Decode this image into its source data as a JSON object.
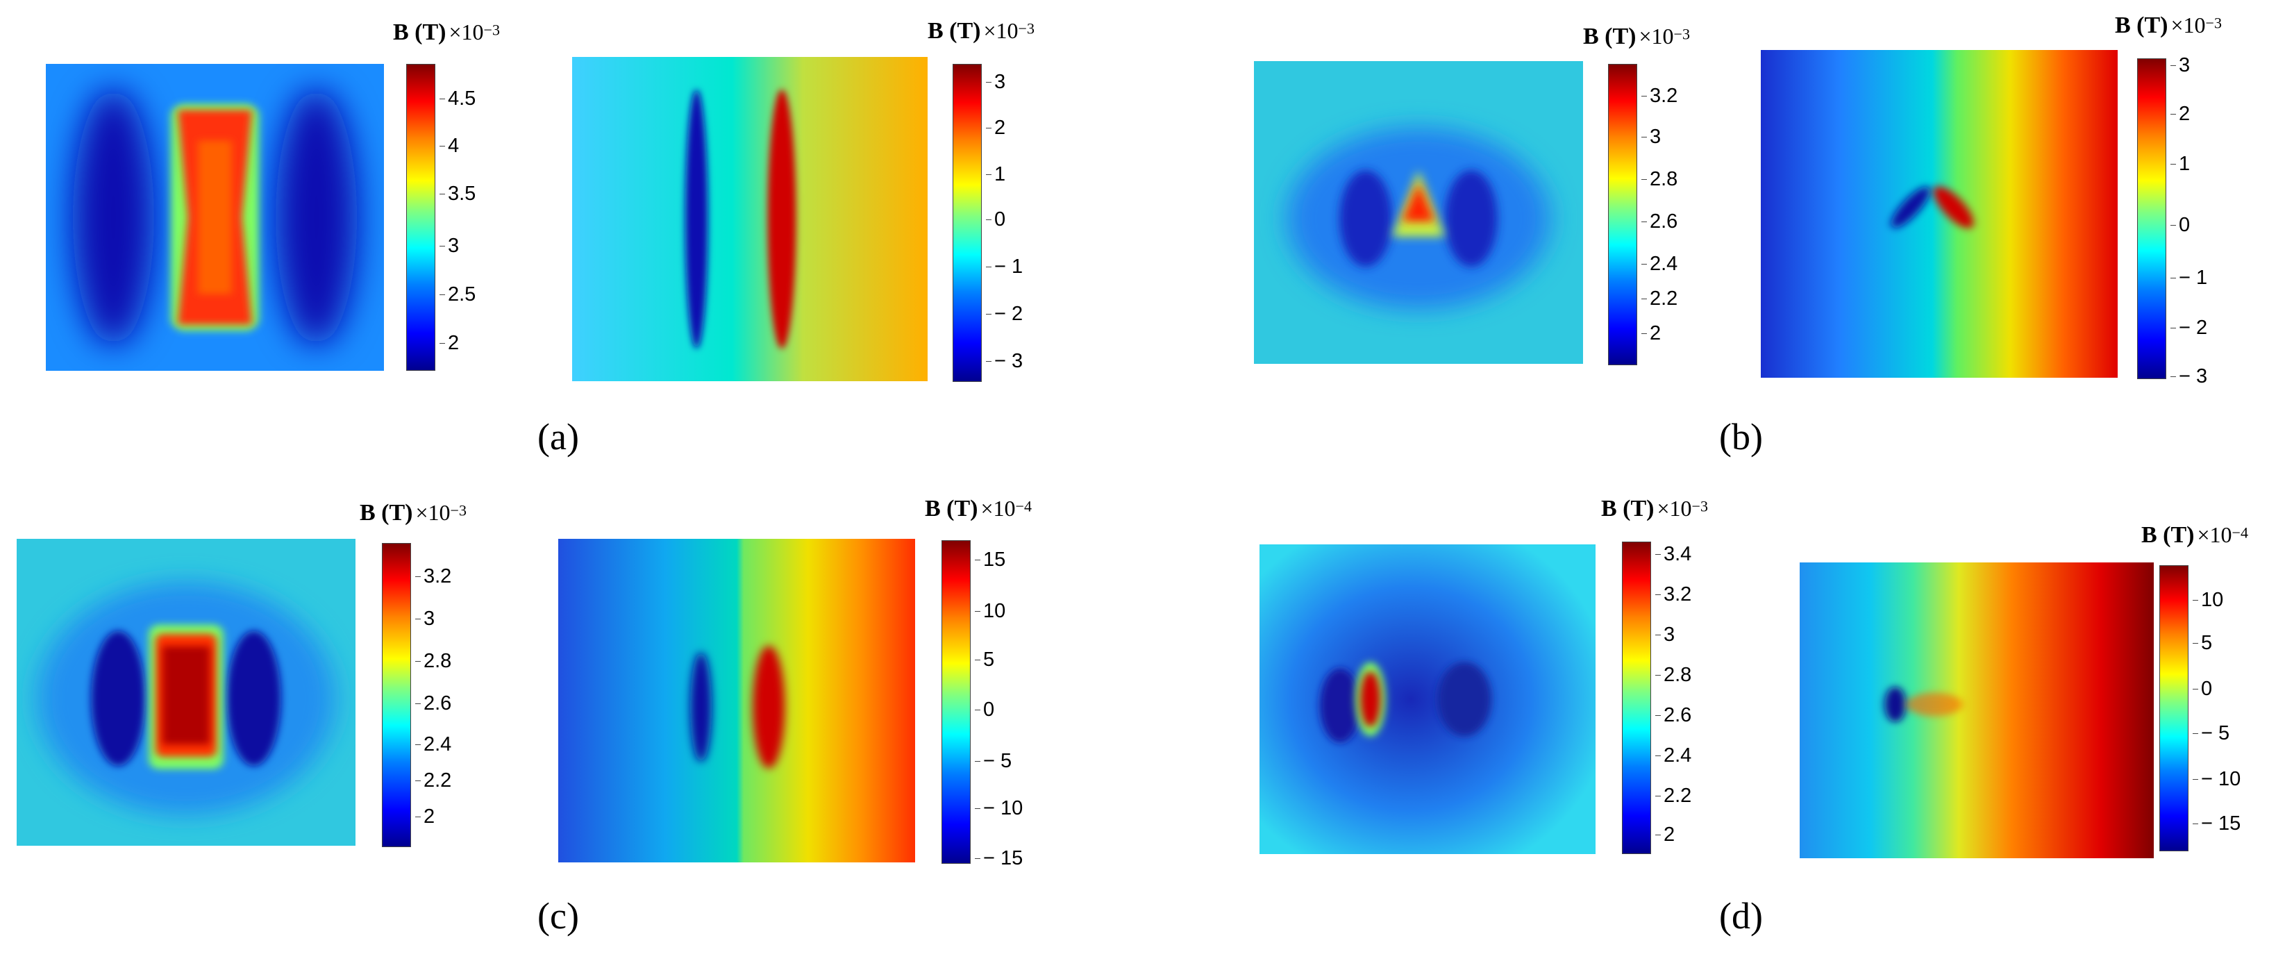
{
  "colors": {
    "deep_blue": "#00008f",
    "blue": "#0000ff",
    "cyan": "#00ffff",
    "green": "#80ff80",
    "yellow": "#ffff00",
    "orange": "#ff8000",
    "red": "#ff0000",
    "dark_red": "#800000"
  },
  "panels": [
    {
      "caption": "(a)",
      "left": {
        "unit": "B (T)",
        "scale": "×10",
        "exp": "−3",
        "ticks": [
          "4.5",
          "4",
          "3.5",
          "3",
          "2.5",
          "2"
        ]
      },
      "right": {
        "unit": "B (T)",
        "scale": "×10",
        "exp": "−3",
        "ticks": [
          "3",
          "2",
          "1",
          "0",
          "− 1",
          "− 2",
          "− 3"
        ]
      }
    },
    {
      "caption": "(b)",
      "left": {
        "unit": "B (T)",
        "scale": "×10",
        "exp": "−3",
        "ticks": [
          "3.2",
          "3",
          "2.8",
          "2.6",
          "2.4",
          "2.2",
          "2"
        ]
      },
      "right": {
        "unit": "B (T)",
        "scale": "×10",
        "exp": "−3",
        "ticks": [
          "3",
          "2",
          "1",
          "0",
          "− 1",
          "− 2",
          "− 3"
        ]
      }
    },
    {
      "caption": "(c)",
      "left": {
        "unit": "B (T)",
        "scale": "×10",
        "exp": "−3",
        "ticks": [
          "3.2",
          "3",
          "2.8",
          "2.6",
          "2.4",
          "2.2",
          "2"
        ]
      },
      "right": {
        "unit": "B (T)",
        "scale": "×10",
        "exp": "−4",
        "ticks": [
          "15",
          "10",
          "5",
          "0",
          "− 5",
          "− 10",
          "− 15"
        ]
      }
    },
    {
      "caption": "(d)",
      "left": {
        "unit": "B (T)",
        "scale": "×10",
        "exp": "−3",
        "ticks": [
          "3.4",
          "3.2",
          "3",
          "2.8",
          "2.6",
          "2.4",
          "2.2",
          "2"
        ]
      },
      "right": {
        "unit": "B (T)",
        "scale": "×10",
        "exp": "−4",
        "ticks": [
          "10",
          "5",
          "0",
          "− 5",
          "− 10",
          "− 15"
        ]
      }
    }
  ]
}
